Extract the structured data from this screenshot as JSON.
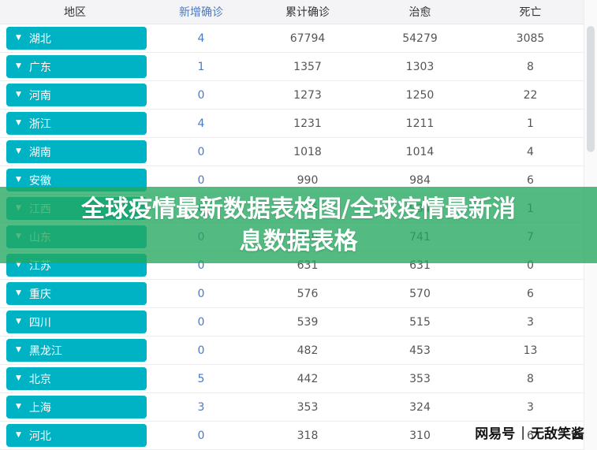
{
  "table": {
    "headers": [
      "地区",
      "新增确诊",
      "累计确诊",
      "治愈",
      "死亡"
    ],
    "rows": [
      {
        "region": "湖北",
        "new": "4",
        "total": "67794",
        "cured": "54279",
        "dead": "3085"
      },
      {
        "region": "广东",
        "new": "1",
        "total": "1357",
        "cured": "1303",
        "dead": "8"
      },
      {
        "region": "河南",
        "new": "0",
        "total": "1273",
        "cured": "1250",
        "dead": "22"
      },
      {
        "region": "浙江",
        "new": "4",
        "total": "1231",
        "cured": "1211",
        "dead": "1"
      },
      {
        "region": "湖南",
        "new": "0",
        "total": "1018",
        "cured": "1014",
        "dead": "4"
      },
      {
        "region": "安徽",
        "new": "0",
        "total": "990",
        "cured": "984",
        "dead": "6"
      },
      {
        "region": "江西",
        "new": "0",
        "total": "935",
        "cured": "934",
        "dead": "1"
      },
      {
        "region": "山东",
        "new": "0",
        "total": "758",
        "cured": "741",
        "dead": "7"
      },
      {
        "region": "江苏",
        "new": "0",
        "total": "631",
        "cured": "631",
        "dead": "0"
      },
      {
        "region": "重庆",
        "new": "0",
        "total": "576",
        "cured": "570",
        "dead": "6"
      },
      {
        "region": "四川",
        "new": "0",
        "total": "539",
        "cured": "515",
        "dead": "3"
      },
      {
        "region": "黑龙江",
        "new": "0",
        "total": "482",
        "cured": "453",
        "dead": "13"
      },
      {
        "region": "北京",
        "new": "5",
        "total": "442",
        "cured": "353",
        "dead": "8"
      },
      {
        "region": "上海",
        "new": "3",
        "total": "353",
        "cured": "324",
        "dead": "3"
      },
      {
        "region": "河北",
        "new": "0",
        "total": "318",
        "cured": "310",
        "dead": "6"
      }
    ]
  },
  "overlay": {
    "line1": "全球疫情最新数据表格图/全球疫情最新消",
    "line2": "息数据表格"
  },
  "watermark": {
    "brand": "网易号",
    "divider": "|",
    "author": "无敌笑酱"
  },
  "icons": {
    "chevron_down": "▼"
  },
  "colors": {
    "region_button": "#00b3c4",
    "link_blue": "#4a7ac4",
    "overlay_green_rgba": "rgba(34,167,94,0.78)"
  }
}
